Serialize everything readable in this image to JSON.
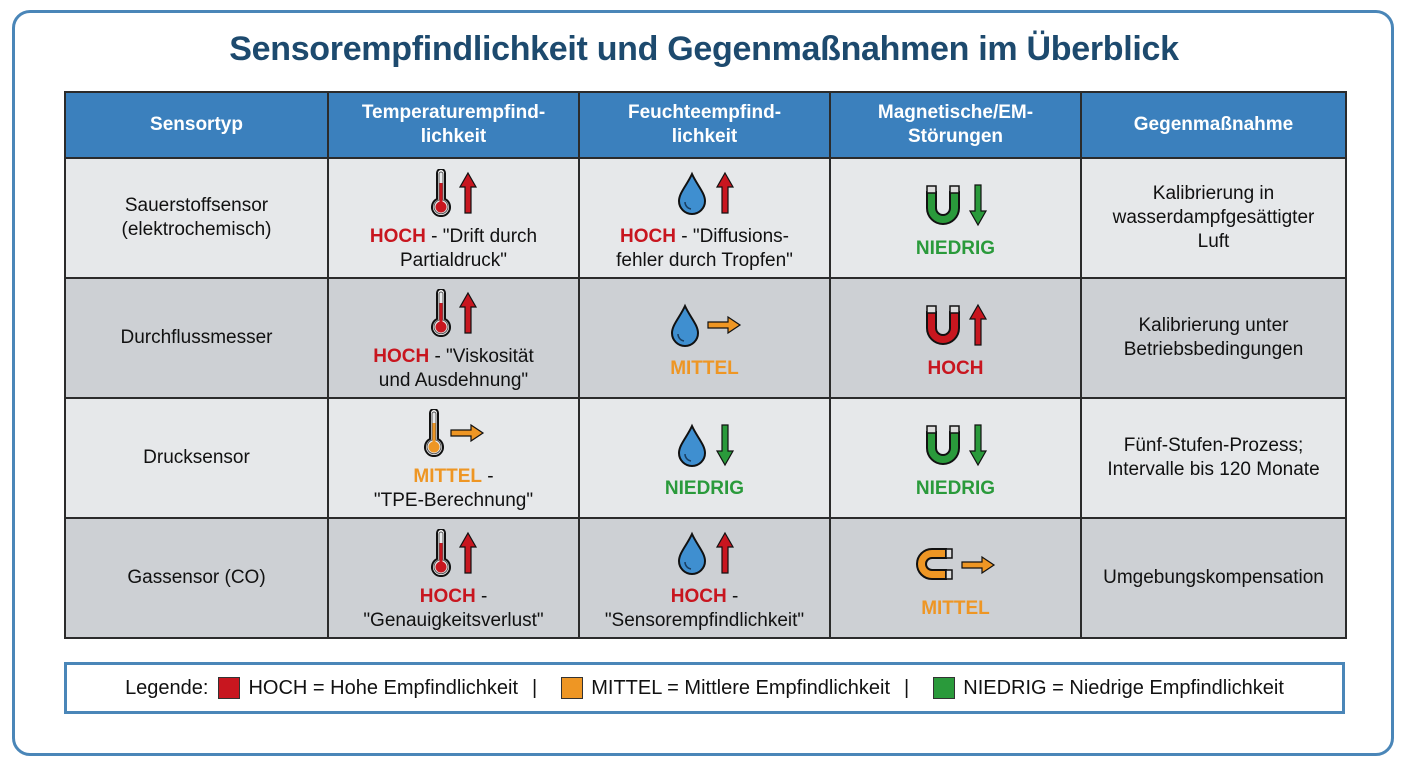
{
  "title": "Sensorempfindlichkeit und Gegenmaßnahmen im Überblick",
  "colors": {
    "hoch": "#c8161f",
    "mittel": "#ee9624",
    "niedrig": "#2a9a3b",
    "header_bg": "#3b80bd",
    "title": "#1d4a6e",
    "drop": "#3f8fd0"
  },
  "table": {
    "headers": [
      "Sensortyp",
      "Temperaturempfind-\nlichkeit",
      "Feuchteempfind-\nlichkeit",
      "Magnetische/EM-\nStörungen",
      "Gegenmaßnahme"
    ],
    "rows": [
      {
        "sensor": "Sauerstoffsensor\n(elektrochemisch)",
        "temp": {
          "icon": "thermometer-icon",
          "arrow": "arrow-up-icon",
          "level": "HOCH",
          "note": " - \"Drift durch\nPartialdruck\""
        },
        "humidity": {
          "icon": "water-drop-icon",
          "arrow": "arrow-up-icon",
          "level": "HOCH",
          "note": " - \"Diffusions-\nfehler durch Tropfen\""
        },
        "magnetic": {
          "icon": "magnet-icon",
          "arrow": "arrow-down-icon",
          "level": "NIEDRIG",
          "note": ""
        },
        "countermeasure": "Kalibrierung in\nwasserdampfgesättigter\nLuft"
      },
      {
        "sensor": "Durchflussmesser",
        "temp": {
          "icon": "thermometer-icon",
          "arrow": "arrow-up-icon",
          "level": "HOCH",
          "note": " - \"Viskosität\nund Ausdehnung\""
        },
        "humidity": {
          "icon": "water-drop-icon",
          "arrow": "arrow-right-icon",
          "level": "MITTEL",
          "note": ""
        },
        "magnetic": {
          "icon": "magnet-icon",
          "arrow": "arrow-up-icon",
          "level": "HOCH",
          "note": ""
        },
        "countermeasure": "Kalibrierung unter\nBetriebsbedingungen"
      },
      {
        "sensor": "Drucksensor",
        "temp": {
          "icon": "thermometer-icon",
          "arrow": "arrow-right-icon",
          "level": "MITTEL",
          "note": " -\n\"TPE-Berechnung\""
        },
        "humidity": {
          "icon": "water-drop-icon",
          "arrow": "arrow-down-icon",
          "level": "NIEDRIG",
          "note": ""
        },
        "magnetic": {
          "icon": "magnet-icon",
          "arrow": "arrow-down-icon",
          "level": "NIEDRIG",
          "note": ""
        },
        "countermeasure": "Fünf-Stufen-Prozess;\nIntervalle bis 120 Monate"
      },
      {
        "sensor": "Gassensor (CO)",
        "temp": {
          "icon": "thermometer-icon",
          "arrow": "arrow-up-icon",
          "level": "HOCH",
          "note": " -\n\"Genauigkeitsverlust\""
        },
        "humidity": {
          "icon": "water-drop-icon",
          "arrow": "arrow-up-icon",
          "level": "HOCH",
          "note": " -\n\"Sensorempfindlichkeit\""
        },
        "magnetic": {
          "icon": "magnet-icon",
          "arrow": "arrow-right-icon",
          "level": "MITTEL",
          "note": ""
        },
        "countermeasure": "Umgebungskompensation"
      }
    ]
  },
  "legend": {
    "label": "Legende:",
    "items": [
      {
        "swatch": "#c8161f",
        "text": "HOCH = Hohe Empfindlichkeit"
      },
      {
        "swatch": "#ee9624",
        "text": "MITTEL = Mittlere Empfindlichkeit"
      },
      {
        "swatch": "#2a9a3b",
        "text": "NIEDRIG = Niedrige Empfindlichkeit"
      }
    ],
    "separator": "|"
  }
}
